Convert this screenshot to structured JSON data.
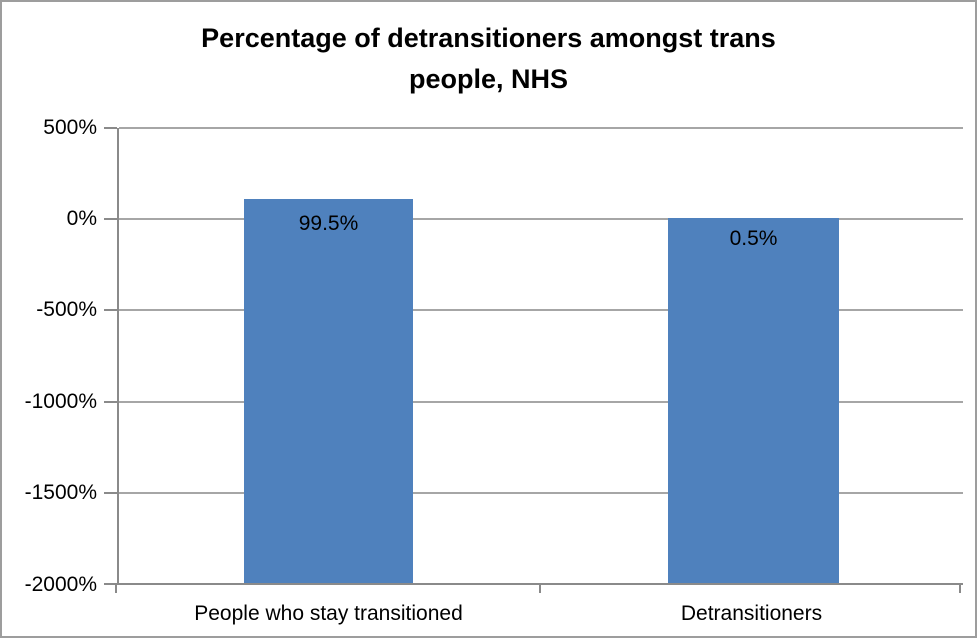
{
  "title": {
    "lines": [
      "Percentage of detransitioners amongst trans",
      "people, NHS"
    ]
  },
  "y_axis": {
    "ticks": [
      "500%",
      "0%",
      "-500%",
      "-1000%",
      "-1500%",
      "-2000%"
    ]
  },
  "x_axis": {
    "categories": [
      "People who stay transitioned",
      "Detransitioners"
    ]
  },
  "bars": [
    {
      "category": "People who stay transitioned",
      "label": "99.5%"
    },
    {
      "category": "Detransitioners",
      "label": "0.5%"
    }
  ],
  "colors": {
    "bar": "#4f81bd",
    "gridline": "#a6a6a6",
    "axis_line": "#8a8a8a",
    "frame_border": "#9d9d9d",
    "text": "#000000",
    "background": "#ffffff"
  },
  "chart_data": {
    "type": "bar",
    "title": "Percentage of detransitioners amongst trans people, NHS",
    "categories": [
      "People who stay transitioned",
      "Detransitioners"
    ],
    "values": [
      99.5,
      0.5
    ],
    "data_labels": [
      "99.5%",
      "0.5%"
    ],
    "xlabel": "",
    "ylabel": "",
    "ylim": [
      -2000,
      500
    ],
    "y_tick_step": 500,
    "y_tick_unit": "%",
    "grid": "horizontal gridlines on",
    "legend": "none",
    "bar_color": "#4f81bd",
    "note": "bars are drawn from the plot bottom (-2000%) up to their value; data labels shown inside bar tops"
  }
}
